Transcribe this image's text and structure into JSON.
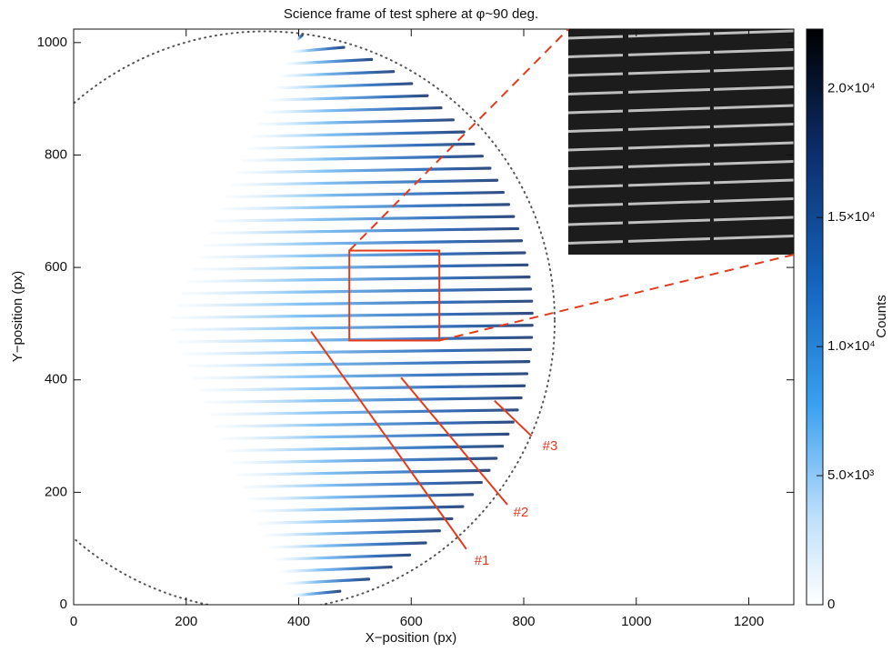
{
  "chart_data": {
    "type": "image",
    "title": "Science frame of test sphere at φ~90 deg.",
    "x_label": "X−position (px)",
    "y_label": "Y−position (px)",
    "colorbar_label": "Counts",
    "xlim": [
      0,
      1280
    ],
    "xticks": [
      0,
      200,
      400,
      600,
      800,
      1000,
      1200
    ],
    "ylim": [
      0,
      1024
    ],
    "yticks": [
      0,
      200,
      400,
      600,
      800,
      1000
    ],
    "clim": [
      0,
      22300
    ],
    "cticks": [
      0,
      {
        "value": 5000,
        "label": "5.0×10³"
      },
      {
        "value": 10000,
        "label": "1.0×10⁴"
      },
      {
        "value": 15000,
        "label": "1.5×10⁴"
      },
      {
        "value": 20000,
        "label": "2.0×10⁴"
      }
    ],
    "annotations": [
      "#1",
      "#2",
      "#3"
    ],
    "annotation_color": "#e23b1e"
  }
}
